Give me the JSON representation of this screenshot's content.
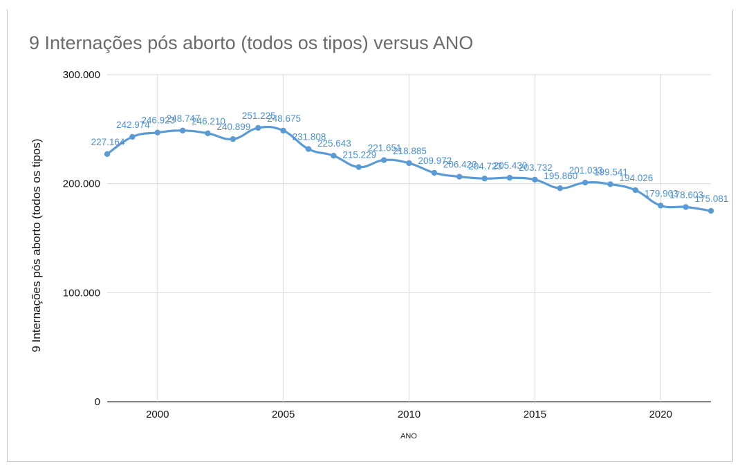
{
  "chart_data": {
    "type": "line",
    "title": "9 Internações pós aborto (todos os tipos) versus ANO",
    "xlabel": "ANO",
    "ylabel": "9 Internações pós aborto (todos os tipos)",
    "x": [
      1998,
      1999,
      2000,
      2001,
      2002,
      2003,
      2004,
      2005,
      2006,
      2007,
      2008,
      2009,
      2010,
      2011,
      2012,
      2013,
      2014,
      2015,
      2016,
      2017,
      2018,
      2019,
      2020,
      2021,
      2022
    ],
    "values": [
      227164,
      242974,
      246923,
      248747,
      246210,
      240899,
      251225,
      248675,
      231808,
      225643,
      215229,
      221651,
      218885,
      209972,
      206423,
      204723,
      205430,
      203732,
      195860,
      201033,
      199541,
      194026,
      179903,
      178603,
      175081
    ],
    "labels": [
      "227.164",
      "242.974",
      "246.923",
      "248.747",
      "246.210",
      "240.899",
      "251.225",
      "248.675",
      "231.808",
      "225.643",
      "215.229",
      "221.651",
      "218.885",
      "209.972",
      "206.423",
      "204.723",
      "205.430",
      "203.732",
      "195.860",
      "201.033",
      "199.541",
      "194.026",
      "179.903",
      "178.603",
      "175.081"
    ],
    "xticks": [
      2000,
      2005,
      2010,
      2015,
      2020
    ],
    "xtick_labels": [
      "2000",
      "2005",
      "2010",
      "2015",
      "2020"
    ],
    "yticks": [
      0,
      100000,
      200000,
      300000
    ],
    "ytick_labels": [
      "0",
      "100.000",
      "200.000",
      "300.000"
    ],
    "xlim": [
      1998,
      2022
    ],
    "ylim": [
      0,
      300000
    ],
    "grid": true,
    "color": "#5b9bd5",
    "label_color": "#4a90d9"
  }
}
